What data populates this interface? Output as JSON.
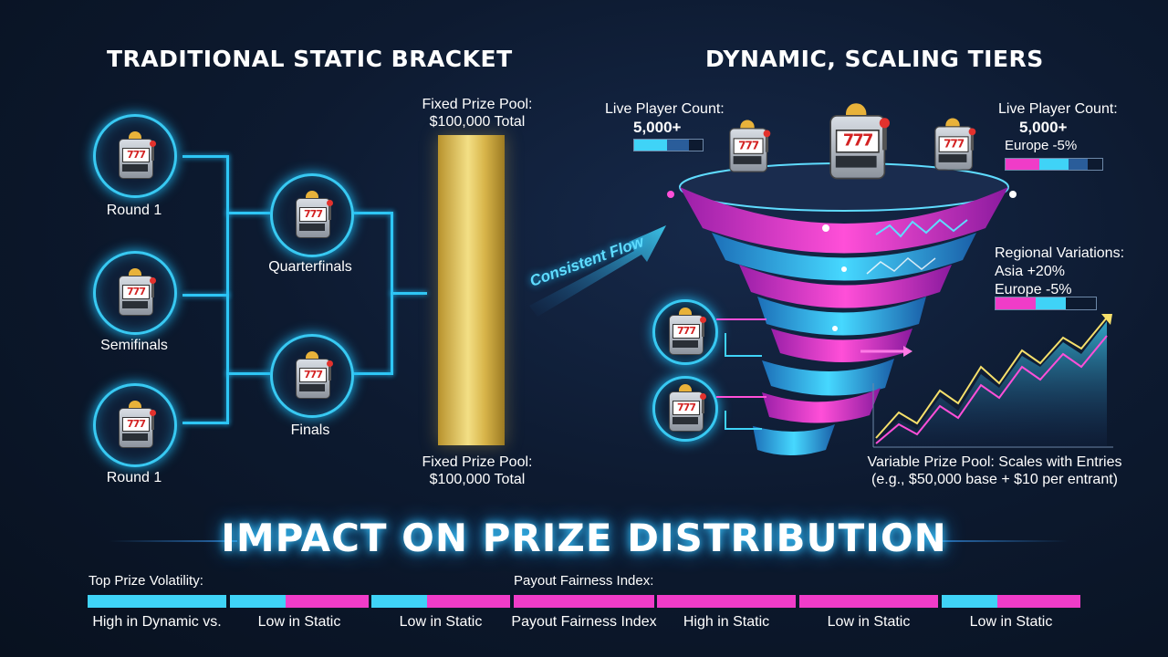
{
  "left": {
    "title": "TRADITIONAL STATIC BRACKET",
    "round1_top": "Round 1",
    "semifinals": "Semifinals",
    "round1_bottom": "Round 1",
    "quarterfinals": "Quarterfinals",
    "finals": "Finals",
    "prize_top_line1": "Fixed Prize Pool:",
    "prize_top_line2": "$100,000 Total",
    "prize_bottom_line1": "Fixed Prize Pool:",
    "prize_bottom_line2": "$100,000 Total",
    "slot_reels": "777"
  },
  "flow": {
    "label": "Consistent Flow"
  },
  "right": {
    "title": "DYNAMIC, SCALING TIERS",
    "live_left_label": "Live Player Count:",
    "live_left_value": "5,000+",
    "live_right_label": "Live Player Count:",
    "live_right_value": "5,000+",
    "live_right_sub": "Europe -5%",
    "regional_title": "Regional Variations:",
    "regional_asia": "Asia +20%",
    "regional_europe": "Europe -5%",
    "variable_line1": "Variable Prize Pool: Scales with Entries",
    "variable_line2": "(e.g., $50,000 base + $10 per entrant)"
  },
  "impact": {
    "title": "IMPACT ON PRIZE DISTRIBUTION",
    "top_left_label": "Top Prize Volatility:",
    "top_mid_label": "Payout Fairness Index:",
    "bottom_labels": [
      "High in Dynamic vs.",
      "Low in Static",
      "Low in Static",
      "Payout Fairness Index",
      "High in Static",
      "Low in Static",
      "Low in Static"
    ]
  },
  "colors": {
    "cyan": "#3fd3f7",
    "magenta": "#f03cc8",
    "gold": "#e6c35a",
    "bracket_line": "#2ec6f5"
  }
}
